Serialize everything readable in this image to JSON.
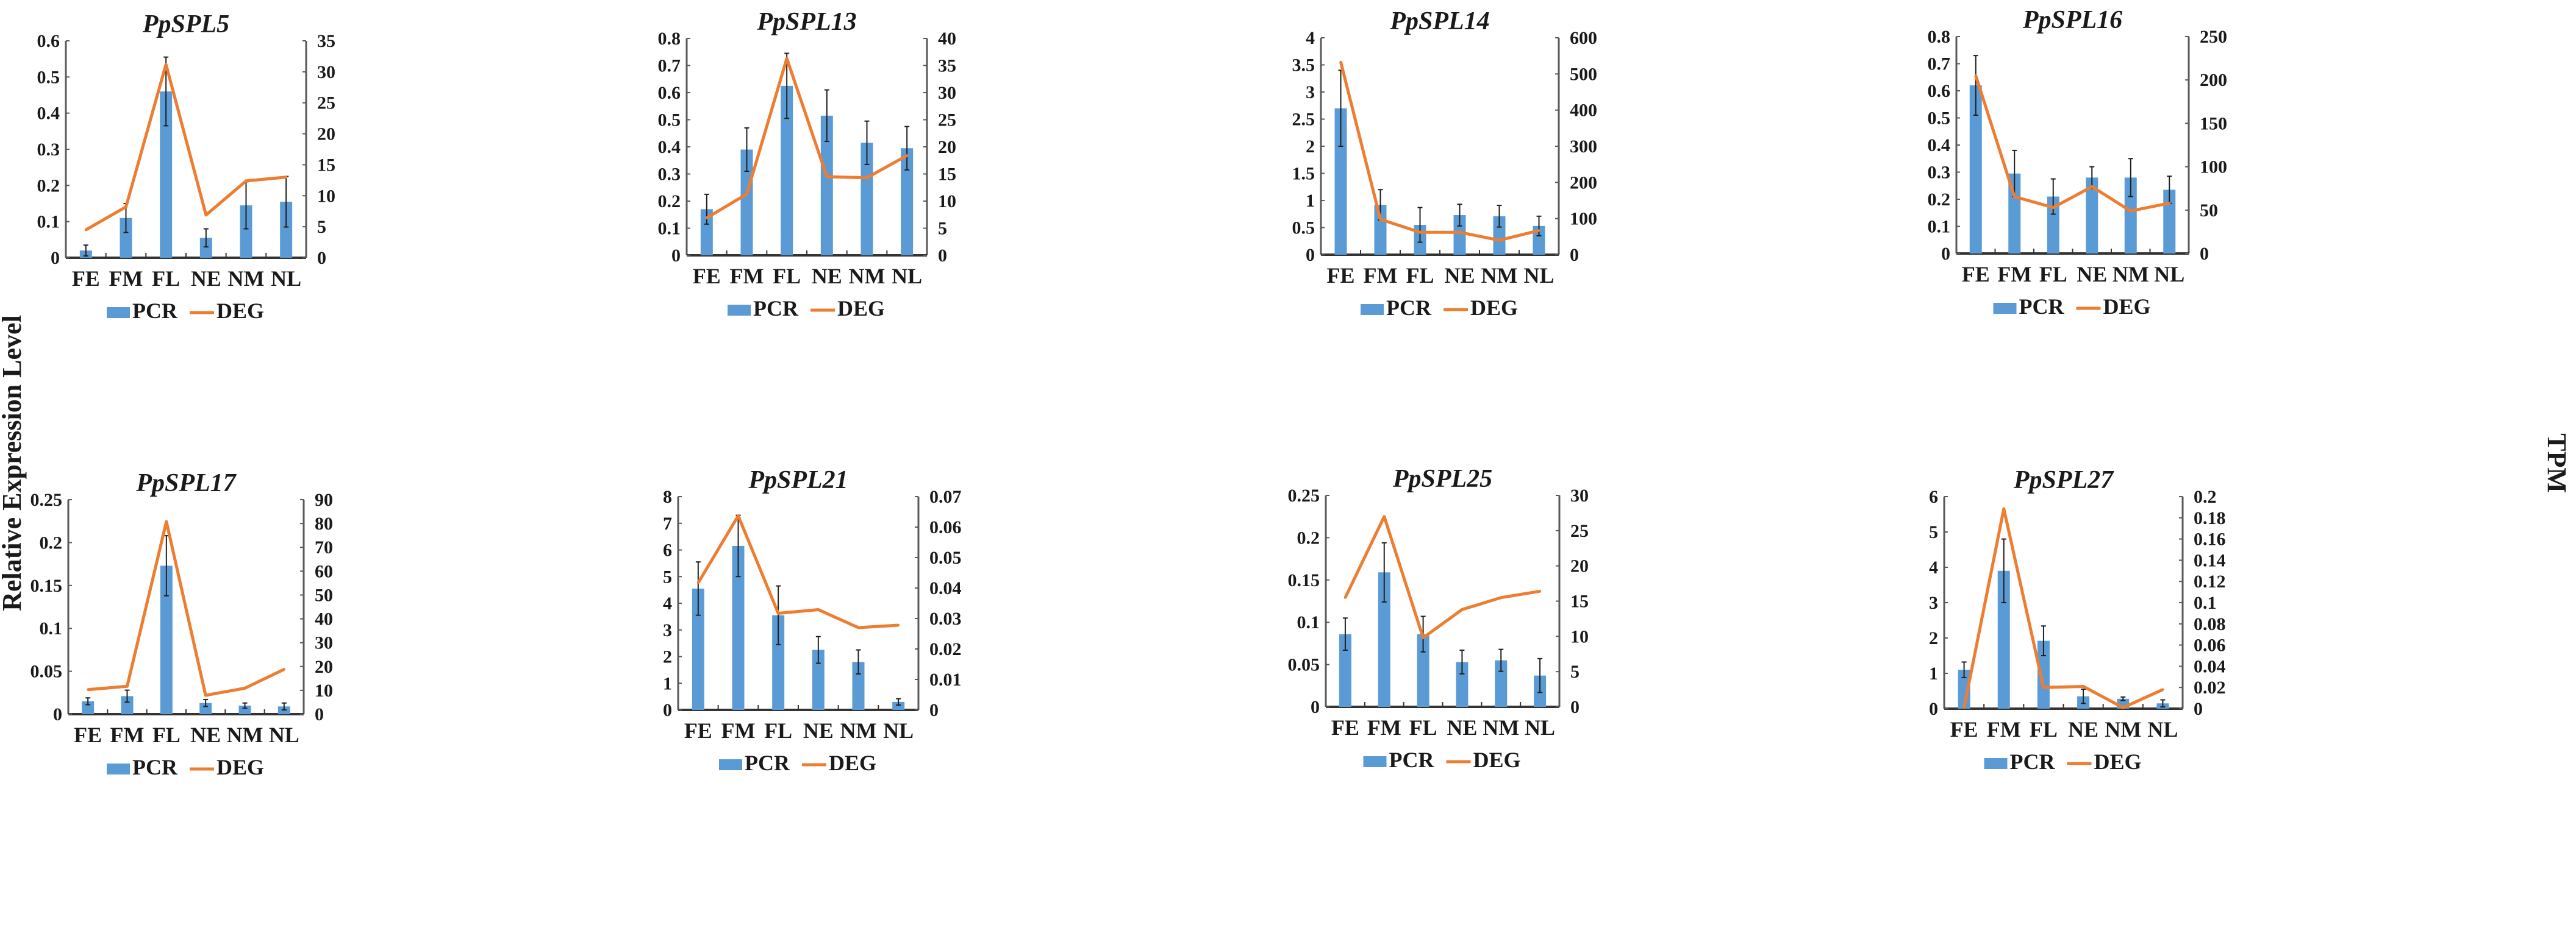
{
  "y_label_left": "Relative Expression Level",
  "y_label_right": "TPM",
  "colors": {
    "pcr": "#5b9bd5",
    "deg": "#ed7d31",
    "axis": "#595959",
    "error": "#1f1f1f"
  },
  "chart_data": [
    {
      "type": "bar+line",
      "title": "PpSPL5",
      "categories": [
        "FE",
        "FM",
        "FL",
        "NE",
        "NM",
        "NL"
      ],
      "ylim": [
        0,
        0.6
      ],
      "yticks": [
        "0",
        "0.1",
        "0.2",
        "0.3",
        "0.4",
        "0.5",
        "0.6"
      ],
      "y2lim": [
        0,
        35
      ],
      "y2ticks": [
        "0",
        "5",
        "10",
        "15",
        "20",
        "25",
        "30",
        "35"
      ],
      "legend": [
        "PCR",
        "DEG"
      ],
      "legend_position": "bottom",
      "series": [
        {
          "name": "PCR",
          "type": "bar",
          "values": [
            0.02,
            0.11,
            0.46,
            0.055,
            0.145,
            0.155
          ],
          "errors": [
            0.015,
            0.04,
            0.095,
            0.025,
            0.065,
            0.07
          ]
        },
        {
          "name": "DEG",
          "type": "line",
          "axis": "right",
          "values": [
            4.5,
            8.2,
            31.2,
            6.9,
            12.4,
            13.0
          ]
        }
      ]
    },
    {
      "type": "bar+line",
      "title": "PpSPL13",
      "categories": [
        "FE",
        "FM",
        "FL",
        "NE",
        "NM",
        "NL"
      ],
      "ylim": [
        0,
        0.8
      ],
      "yticks": [
        "0",
        "0.1",
        "0.2",
        "0.3",
        "0.4",
        "0.5",
        "0.6",
        "0.7",
        "0.8"
      ],
      "y2lim": [
        0,
        40
      ],
      "y2ticks": [
        "0",
        "5",
        "10",
        "15",
        "20",
        "25",
        "30",
        "35",
        "40"
      ],
      "legend": [
        "PCR",
        "DEG"
      ],
      "legend_position": "bottom",
      "series": [
        {
          "name": "PCR",
          "type": "bar",
          "values": [
            0.17,
            0.39,
            0.625,
            0.515,
            0.415,
            0.395
          ],
          "errors": [
            0.055,
            0.08,
            0.12,
            0.095,
            0.08,
            0.08
          ]
        },
        {
          "name": "DEG",
          "type": "line",
          "axis": "right",
          "values": [
            6.9,
            11.3,
            36.3,
            14.5,
            14.3,
            18.4
          ]
        }
      ]
    },
    {
      "type": "bar+line",
      "title": "PpSPL14",
      "categories": [
        "FE",
        "FM",
        "FL",
        "NE",
        "NM",
        "NL"
      ],
      "ylim": [
        0,
        4
      ],
      "yticks": [
        "0",
        "0.5",
        "1",
        "1.5",
        "2",
        "2.5",
        "3",
        "3.5",
        "4"
      ],
      "y2lim": [
        0,
        600
      ],
      "y2ticks": [
        "0",
        "100",
        "200",
        "300",
        "400",
        "500",
        "600"
      ],
      "legend": [
        "PCR",
        "DEG"
      ],
      "legend_position": "bottom",
      "series": [
        {
          "name": "PCR",
          "type": "bar",
          "values": [
            2.7,
            0.92,
            0.55,
            0.73,
            0.71,
            0.53
          ],
          "errors": [
            0.7,
            0.28,
            0.32,
            0.2,
            0.2,
            0.18
          ]
        },
        {
          "name": "DEG",
          "type": "line",
          "axis": "right",
          "values": [
            533,
            98,
            62,
            62,
            40,
            67
          ]
        }
      ]
    },
    {
      "type": "bar+line",
      "title": "PpSPL16",
      "categories": [
        "FE",
        "FM",
        "FL",
        "NE",
        "NM",
        "NL"
      ],
      "ylim": [
        0,
        0.8
      ],
      "yticks": [
        "0",
        "0.1",
        "0.2",
        "0.3",
        "0.4",
        "0.5",
        "0.6",
        "0.7",
        "0.8"
      ],
      "y2lim": [
        0,
        250
      ],
      "y2ticks": [
        "0",
        "50",
        "100",
        "150",
        "200",
        "250"
      ],
      "legend": [
        "PCR",
        "DEG"
      ],
      "legend_position": "bottom",
      "series": [
        {
          "name": "PCR",
          "type": "bar",
          "values": [
            0.62,
            0.295,
            0.21,
            0.28,
            0.28,
            0.235
          ],
          "errors": [
            0.11,
            0.085,
            0.065,
            0.04,
            0.07,
            0.05
          ]
        },
        {
          "name": "DEG",
          "type": "line",
          "axis": "right",
          "values": [
            205,
            65.5,
            53,
            77,
            49,
            58
          ]
        }
      ]
    },
    {
      "type": "bar+line",
      "title": "PpSPL17",
      "categories": [
        "FE",
        "FM",
        "FL",
        "NE",
        "NM",
        "NL"
      ],
      "ylim": [
        0,
        0.25
      ],
      "yticks": [
        "0",
        "0.05",
        "0.1",
        "0.15",
        "0.2",
        "0.25"
      ],
      "y2lim": [
        0,
        90
      ],
      "y2ticks": [
        "0",
        "10",
        "20",
        "30",
        "40",
        "50",
        "60",
        "70",
        "80",
        "90"
      ],
      "legend": [
        "PCR",
        "DEG"
      ],
      "legend_position": "bottom",
      "series": [
        {
          "name": "PCR",
          "type": "bar",
          "values": [
            0.015,
            0.021,
            0.173,
            0.013,
            0.01,
            0.009
          ],
          "errors": [
            0.004,
            0.007,
            0.035,
            0.004,
            0.003,
            0.004
          ]
        },
        {
          "name": "DEG",
          "type": "line",
          "axis": "right",
          "values": [
            10.3,
            11.7,
            80.8,
            7.9,
            10.9,
            18.8
          ]
        }
      ]
    },
    {
      "type": "bar+line",
      "title": "PpSPL21",
      "categories": [
        "FE",
        "FM",
        "FL",
        "NE",
        "NM",
        "NL"
      ],
      "ylim": [
        0,
        8
      ],
      "yticks": [
        "0",
        "1",
        "2",
        "3",
        "4",
        "5",
        "6",
        "7",
        "8"
      ],
      "y2lim": [
        0,
        0.07
      ],
      "y2ticks": [
        "0",
        "0.01",
        "0.02",
        "0.03",
        "0.04",
        "0.05",
        "0.06",
        "0.07"
      ],
      "legend": [
        "PCR",
        "DEG"
      ],
      "legend_position": "bottom",
      "series": [
        {
          "name": "PCR",
          "type": "bar",
          "values": [
            4.55,
            6.15,
            3.55,
            2.25,
            1.8,
            0.3
          ],
          "errors": [
            1.0,
            1.15,
            1.1,
            0.5,
            0.45,
            0.12
          ]
        },
        {
          "name": "DEG",
          "type": "line",
          "axis": "right",
          "values": [
            0.0417,
            0.0637,
            0.0317,
            0.0329,
            0.027,
            0.0278
          ]
        }
      ]
    },
    {
      "type": "bar+line",
      "title": "PpSPL25",
      "categories": [
        "FE",
        "FM",
        "FL",
        "NE",
        "NM",
        "NL"
      ],
      "ylim": [
        0,
        0.25
      ],
      "yticks": [
        "0",
        "0.05",
        "0.1",
        "0.15",
        "0.2",
        "0.25"
      ],
      "y2lim": [
        0,
        30
      ],
      "y2ticks": [
        "0",
        "5",
        "10",
        "15",
        "20",
        "25",
        "30"
      ],
      "legend": [
        "PCR",
        "DEG"
      ],
      "legend_position": "bottom",
      "series": [
        {
          "name": "PCR",
          "type": "bar",
          "values": [
            0.086,
            0.159,
            0.086,
            0.053,
            0.055,
            0.037
          ],
          "errors": [
            0.019,
            0.035,
            0.021,
            0.014,
            0.013,
            0.02
          ]
        },
        {
          "name": "DEG",
          "type": "line",
          "axis": "right",
          "values": [
            15.5,
            27,
            9.8,
            13.8,
            15.5,
            16.4
          ]
        }
      ]
    },
    {
      "type": "bar+line",
      "title": "PpSPL27",
      "categories": [
        "FE",
        "FM",
        "FL",
        "NE",
        "NM",
        "NL"
      ],
      "ylim": [
        0,
        6
      ],
      "yticks": [
        "0",
        "1",
        "2",
        "3",
        "4",
        "5",
        "6"
      ],
      "y2lim": [
        0,
        0.2
      ],
      "y2ticks": [
        "0",
        "0.02",
        "0.04",
        "0.06",
        "0.08",
        "0.1",
        "0.12",
        "0.14",
        "0.16",
        "0.18",
        "0.2"
      ],
      "legend": [
        "PCR",
        "DEG"
      ],
      "legend_position": "bottom",
      "series": [
        {
          "name": "PCR",
          "type": "bar",
          "values": [
            1.1,
            3.9,
            1.92,
            0.35,
            0.28,
            0.15
          ],
          "errors": [
            0.22,
            0.9,
            0.42,
            0.2,
            0.05,
            0.1
          ]
        },
        {
          "name": "DEG",
          "type": "line",
          "axis": "right",
          "values": [
            0.001,
            0.1885,
            0.02,
            0.021,
            0.001,
            0.018
          ]
        }
      ]
    }
  ]
}
